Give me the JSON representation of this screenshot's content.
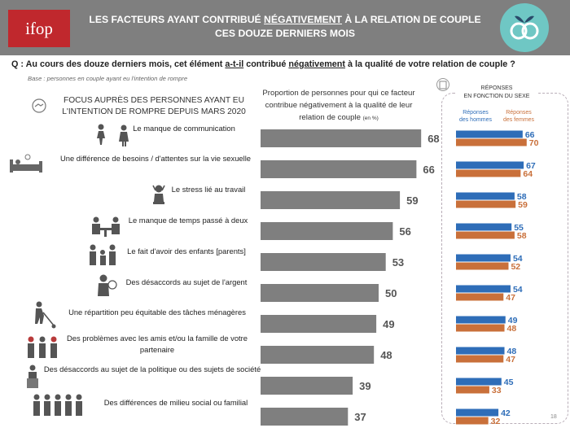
{
  "header": {
    "logo_text": "ifop",
    "title_line1_pre": "LES FACTEURS AYANT CONTRIBUÉ ",
    "title_line1_emph": "NÉGATIVEMENT",
    "title_line1_post": " À LA RELATION DE COUPLE",
    "title_line2": "CES DOUZE DERNIERS MOIS"
  },
  "question": {
    "part1": "Q : Au cours des douze derniers mois, cet élément ",
    "part2": "a-t-il",
    "part3": " contribué ",
    "part4": "négativement",
    "part5": " à la qualité de votre relation de couple ?"
  },
  "base": "Base :   personnes en couple ayant eu l'intention de rompre",
  "focus_title": {
    "line1": "FOCUS AUPRÈS DES PERSONNES AYANT EU",
    "line2": "L'INTENTION DE ROMPRE DEPUIS MARS 2020"
  },
  "proportion_title": {
    "line1": "Proportion de personnes pour qui ce facteur",
    "line2": "contribue négativement à la qualité de leur",
    "line3": "relation de couple",
    "unit": "(en %)"
  },
  "sex_panel": {
    "heading_line1": "RÉPONSES",
    "heading_line2": "EN FONCTION DU SEXE"
  },
  "colors": {
    "header_bg": "#7f7f7f",
    "main_bar": "#7f7f7f",
    "men": "#2e6db8",
    "women": "#c9703a",
    "emblem": "#6fc7c4",
    "logo_bg": "#c0282d"
  },
  "icons": [
    "handshake-icon",
    "conversation-icon",
    "bed-icon",
    "stress-icon",
    "couple-table-icon",
    "family-icon",
    "money-icon",
    "cleaning-icon",
    "friends-icon",
    "politics-icon",
    "crowd-icon"
  ],
  "page_number": "18",
  "chart_data": {
    "type": "bar",
    "categories": [
      "Le manque de communication",
      "Une différence de besoins / d'attentes sur la vie sexuelle",
      "Le stress lié au travail",
      "Le manque de temps passé à deux",
      "Le fait d'avoir des enfants [parents]",
      "Des désaccords au sujet de l'argent",
      "Une répartition peu équitable des tâches ménagères",
      "Des problèmes avec les amis et/ou la famille de votre partenaire",
      "Des désaccords au sujet de la politique ou des sujets de société",
      "Des différences de milieu social ou familial"
    ],
    "values": [
      68,
      66,
      59,
      56,
      53,
      50,
      49,
      48,
      39,
      37
    ],
    "sub_chart": {
      "series_labels": {
        "men_line1": "Réponses",
        "men_line2": "des hommes",
        "women_line1": "Réponses",
        "women_line2": "des femmes"
      },
      "series": [
        {
          "name": "Réponses des hommes",
          "values": [
            66,
            67,
            58,
            55,
            54,
            54,
            49,
            48,
            45,
            42
          ]
        },
        {
          "name": "Réponses des femmes",
          "values": [
            70,
            64,
            59,
            58,
            52,
            47,
            48,
            47,
            33,
            32
          ]
        }
      ]
    }
  }
}
